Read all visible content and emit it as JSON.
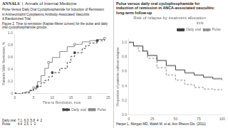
{
  "chart_data": [
    {
      "type": "step",
      "annotations": [
        [
          "ANNALS",
          "|",
          "Annals of Internal Medicine"
        ],
        [
          "Pulse Versus Daily Oral Cyclophosphamide for Induction of Remission"
        ],
        [
          "in Antineutrophil Cytoplasmic Antibody-Associated Vasculitis"
        ],
        [
          "A Randomized Trial"
        ],
        [
          "Figure 2. Time to remission (Kaplan-Meier curves) for the pulse and daily oral cyclophosphamide groups."
        ]
      ],
      "at_risk": [
        "Daily oral  7.1  6.3  5.8  4  2",
        "Pulse        4.4  2.5  1  2"
      ],
      "xlabel": "Time to Remission, mos",
      "ylabel": "Patients With Remission, %",
      "xlim": [
        0,
        25
      ],
      "xticks": [
        0,
        5,
        10,
        15,
        20,
        25
      ],
      "ylim": [
        0,
        1.0
      ],
      "yticks": [
        0,
        0.2,
        0.4,
        0.6,
        0.8,
        {
          "value": 1.0,
          "label": "1.0"
        }
      ],
      "grid": false,
      "legend": "lower right",
      "series": [
        {
          "name": "Daily oral",
          "color": "#444444",
          "line_style": "dashed",
          "marker": "square",
          "x": [
            0,
            2,
            4,
            5,
            6,
            7,
            8,
            9,
            10,
            12,
            14,
            15,
            16,
            18,
            19,
            20,
            22,
            24
          ],
          "values": [
            0,
            0.02,
            0.05,
            0.08,
            0.12,
            0.18,
            0.22,
            0.28,
            0.35,
            0.42,
            0.52,
            0.62,
            0.68,
            0.75,
            0.8,
            0.84,
            0.88,
            0.9
          ]
        },
        {
          "name": "Pulse",
          "color": "#888888",
          "line_style": "solid",
          "marker": "square-open",
          "x": [
            0,
            2,
            3,
            4,
            5,
            6,
            7,
            8,
            9,
            10,
            12,
            14,
            16,
            18,
            20,
            22,
            24
          ],
          "values": [
            0,
            0.01,
            0.03,
            0.06,
            0.1,
            0.2,
            0.3,
            0.42,
            0.52,
            0.6,
            0.7,
            0.78,
            0.82,
            0.86,
            0.88,
            0.9,
            0.92
          ]
        }
      ]
    },
    {
      "type": "step",
      "annotations": [
        [
          "Pulse versus daily oral cyclophosphamide for"
        ],
        [
          "induction of remission in ANCA-associated vasculitis:"
        ],
        [
          "long-term follow-up"
        ]
      ],
      "title": "Risk of relapse by treatment allocation",
      "ylabel": "Proportion of patients without relapse",
      "source": "Harper L, Morgan MD, Walsh M, et al. Ann Rheum Dis. (2011)",
      "xlim": [
        0,
        100
      ],
      "xticks": [
        0,
        25,
        50,
        75,
        100
      ],
      "ylim": [
        0.0,
        1.05
      ],
      "yticks": [
        {
          "value": 0.0,
          "label": "0.0"
        },
        0.2,
        0.4,
        0.6,
        0.8,
        {
          "value": 1.0,
          "label": "1.0"
        }
      ],
      "grid": false,
      "legend": "upper right",
      "legend_title": "limb",
      "series": [
        {
          "name": "Daily oral",
          "color": "#333333",
          "line_style": "solid",
          "x": [
            0,
            5,
            15,
            20,
            30,
            40,
            50,
            60,
            70,
            80,
            90,
            100
          ],
          "values": [
            1.0,
            0.95,
            0.88,
            0.82,
            0.75,
            0.68,
            0.62,
            0.58,
            0.55,
            0.52,
            0.5,
            0.48
          ]
        },
        {
          "name": "Pulse",
          "color": "#888888",
          "line_style": "dashed",
          "x": [
            0,
            5,
            10,
            20,
            30,
            40,
            50,
            60,
            70,
            80,
            90,
            100
          ],
          "values": [
            1.0,
            0.95,
            0.88,
            0.78,
            0.65,
            0.55,
            0.48,
            0.42,
            0.38,
            0.36,
            0.35,
            0.33
          ]
        }
      ]
    }
  ]
}
